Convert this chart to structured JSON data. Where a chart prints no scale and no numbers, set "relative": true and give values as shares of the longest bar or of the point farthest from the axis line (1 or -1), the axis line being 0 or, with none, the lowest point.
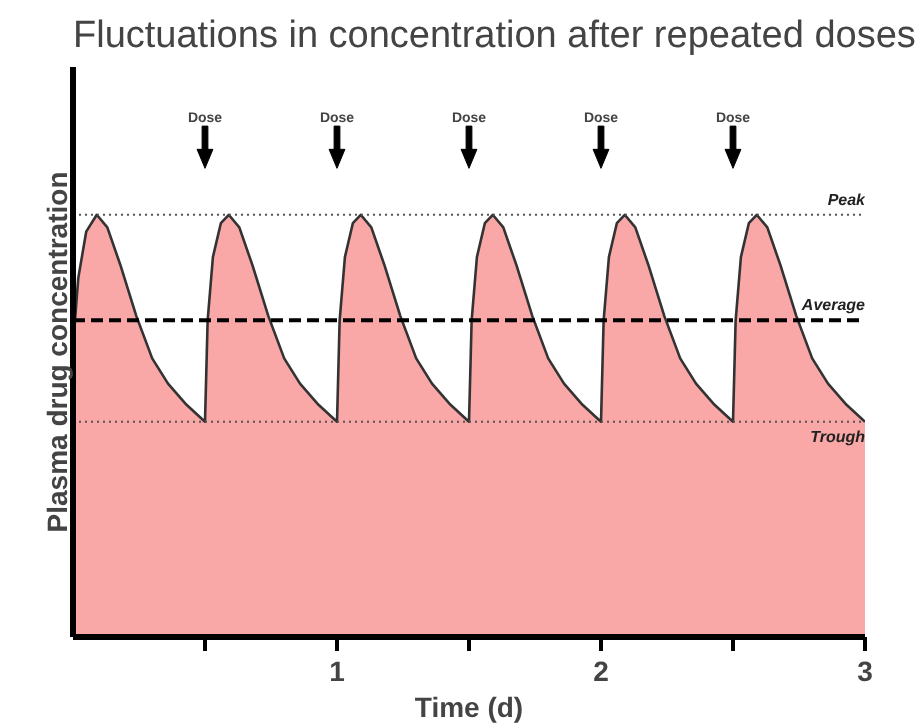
{
  "chart_data": {
    "type": "area",
    "title": "Fluctuations in concentration after repeated doses",
    "xlabel": "Time (d)",
    "ylabel": "Plasma drug concentration",
    "relative": true,
    "x": [
      0,
      0.02,
      0.05,
      0.09,
      0.13,
      0.18,
      0.24,
      0.3,
      0.36,
      0.43,
      0.5,
      0.51,
      0.53,
      0.56,
      0.59,
      0.63,
      0.68,
      0.74,
      0.8,
      0.86,
      0.93,
      1.0,
      1.01,
      1.03,
      1.06,
      1.09,
      1.13,
      1.18,
      1.24,
      1.3,
      1.36,
      1.43,
      1.5,
      1.51,
      1.53,
      1.56,
      1.59,
      1.63,
      1.68,
      1.74,
      1.8,
      1.86,
      1.93,
      2.0,
      2.01,
      2.03,
      2.06,
      2.09,
      2.13,
      2.18,
      2.24,
      2.3,
      2.36,
      2.43,
      2.5,
      2.51,
      2.53,
      2.56,
      2.59,
      2.63,
      2.68,
      2.74,
      2.8,
      2.86,
      2.93,
      3.0
    ],
    "series": [
      {
        "color": "#f9a7a7",
        "values": [
          0.69,
          0.85,
          0.96,
          1.0,
          0.97,
          0.88,
          0.76,
          0.66,
          0.6,
          0.55,
          0.51,
          0.75,
          0.9,
          0.98,
          1.0,
          0.97,
          0.88,
          0.76,
          0.66,
          0.6,
          0.55,
          0.51,
          0.75,
          0.9,
          0.98,
          1.0,
          0.97,
          0.88,
          0.76,
          0.66,
          0.6,
          0.55,
          0.51,
          0.75,
          0.9,
          0.98,
          1.0,
          0.97,
          0.88,
          0.76,
          0.66,
          0.6,
          0.55,
          0.51,
          0.75,
          0.9,
          0.98,
          1.0,
          0.97,
          0.88,
          0.76,
          0.66,
          0.6,
          0.55,
          0.51,
          0.75,
          0.9,
          0.98,
          1.0,
          0.97,
          0.88,
          0.76,
          0.66,
          0.6,
          0.55,
          0.51
        ]
      }
    ],
    "xlim": [
      0,
      3
    ],
    "xticks": [
      {
        "value": 0.5,
        "label": null
      },
      1,
      {
        "value": 1.5,
        "label": null
      },
      2,
      {
        "value": 2.5,
        "label": null
      },
      3
    ],
    "tick_labels": "x",
    "grid": false,
    "marker": "none",
    "line_style": "solid",
    "ref_lines": [
      {
        "axis": "y",
        "value": 1.0,
        "label": "Peak",
        "line_style": "dotted",
        "color": "#555555"
      },
      {
        "axis": "y",
        "value": 0.75,
        "label": "Average",
        "line_style": "dashed",
        "color": "#000000"
      },
      {
        "axis": "y",
        "value": 0.51,
        "label": "Trough",
        "line_style": "dotted",
        "color": "#555555"
      },
      {
        "axis": "x",
        "value": 0.5,
        "label": "Dose"
      },
      {
        "axis": "x",
        "value": 1.0,
        "label": "Dose"
      },
      {
        "axis": "x",
        "value": 1.5,
        "label": "Dose"
      },
      {
        "axis": "x",
        "value": 2.0,
        "label": "Dose"
      },
      {
        "axis": "x",
        "value": 2.5,
        "label": "Dose"
      }
    ]
  }
}
